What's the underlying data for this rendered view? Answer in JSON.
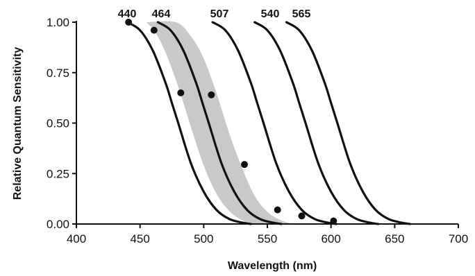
{
  "chart_data": {
    "type": "line",
    "title": "",
    "xlabel": "Wavelength (nm)",
    "ylabel": "Relative Quantum Sensitivity",
    "xlim": [
      400,
      700
    ],
    "ylim": [
      0,
      1
    ],
    "x_ticks": [
      "400",
      "450",
      "500",
      "550",
      "600",
      "650",
      "700"
    ],
    "y_ticks": [
      "0.00",
      "0.25",
      "0.50",
      "0.75",
      "1.00"
    ],
    "grid": false,
    "legend": "none",
    "series": [
      {
        "name": "440",
        "points": [
          [
            440,
            1.0
          ],
          [
            450,
            0.96
          ],
          [
            460,
            0.86
          ],
          [
            470,
            0.7
          ],
          [
            475,
            0.6
          ],
          [
            480,
            0.5
          ],
          [
            490,
            0.3
          ],
          [
            500,
            0.16
          ],
          [
            510,
            0.07
          ],
          [
            520,
            0.025
          ],
          [
            530,
            0.007
          ],
          [
            537,
            0.0
          ]
        ]
      },
      {
        "name": "464",
        "points": [
          [
            464,
            1.0
          ],
          [
            474,
            0.96
          ],
          [
            484,
            0.86
          ],
          [
            494,
            0.7
          ],
          [
            499,
            0.6
          ],
          [
            504,
            0.5
          ],
          [
            514,
            0.3
          ],
          [
            524,
            0.16
          ],
          [
            534,
            0.07
          ],
          [
            544,
            0.025
          ],
          [
            554,
            0.007
          ],
          [
            561,
            0.0
          ]
        ]
      },
      {
        "name": "507",
        "points": [
          [
            507,
            1.0
          ],
          [
            517,
            0.96
          ],
          [
            527,
            0.86
          ],
          [
            537,
            0.7
          ],
          [
            542,
            0.6
          ],
          [
            547,
            0.5
          ],
          [
            557,
            0.3
          ],
          [
            567,
            0.16
          ],
          [
            577,
            0.07
          ],
          [
            587,
            0.025
          ],
          [
            597,
            0.007
          ],
          [
            604,
            0.0
          ]
        ]
      },
      {
        "name": "540",
        "points": [
          [
            540,
            1.0
          ],
          [
            550,
            0.96
          ],
          [
            560,
            0.86
          ],
          [
            570,
            0.7
          ],
          [
            575,
            0.6
          ],
          [
            580,
            0.5
          ],
          [
            590,
            0.3
          ],
          [
            600,
            0.16
          ],
          [
            610,
            0.07
          ],
          [
            620,
            0.025
          ],
          [
            630,
            0.007
          ],
          [
            637,
            0.0
          ]
        ]
      },
      {
        "name": "565",
        "points": [
          [
            565,
            1.0
          ],
          [
            575,
            0.96
          ],
          [
            585,
            0.86
          ],
          [
            595,
            0.7
          ],
          [
            600,
            0.6
          ],
          [
            605,
            0.5
          ],
          [
            615,
            0.3
          ],
          [
            625,
            0.16
          ],
          [
            635,
            0.07
          ],
          [
            645,
            0.025
          ],
          [
            655,
            0.007
          ],
          [
            662,
            0.0
          ]
        ]
      }
    ],
    "shaded_band": {
      "upper": [
        [
          455,
          1.0
        ],
        [
          478,
          1.0
        ],
        [
          490,
          0.93
        ],
        [
          500,
          0.82
        ],
        [
          510,
          0.65
        ],
        [
          520,
          0.45
        ],
        [
          530,
          0.28
        ],
        [
          540,
          0.14
        ],
        [
          550,
          0.06
        ],
        [
          560,
          0.02
        ],
        [
          570,
          0.0
        ]
      ],
      "lower": [
        [
          455,
          1.0
        ],
        [
          462,
          0.95
        ],
        [
          470,
          0.85
        ],
        [
          480,
          0.68
        ],
        [
          490,
          0.48
        ],
        [
          500,
          0.29
        ],
        [
          510,
          0.15
        ],
        [
          520,
          0.065
        ],
        [
          530,
          0.02
        ],
        [
          540,
          0.0
        ],
        [
          570,
          0.0
        ]
      ],
      "color": "#c9c9c9"
    },
    "scatter": [
      [
        441,
        1.0
      ],
      [
        461,
        0.96
      ],
      [
        482,
        0.65
      ],
      [
        506,
        0.64
      ],
      [
        532,
        0.295
      ],
      [
        558,
        0.07
      ],
      [
        577,
        0.04
      ],
      [
        602,
        0.015
      ]
    ],
    "line_color": "#111111",
    "marker_color": "#111111"
  }
}
